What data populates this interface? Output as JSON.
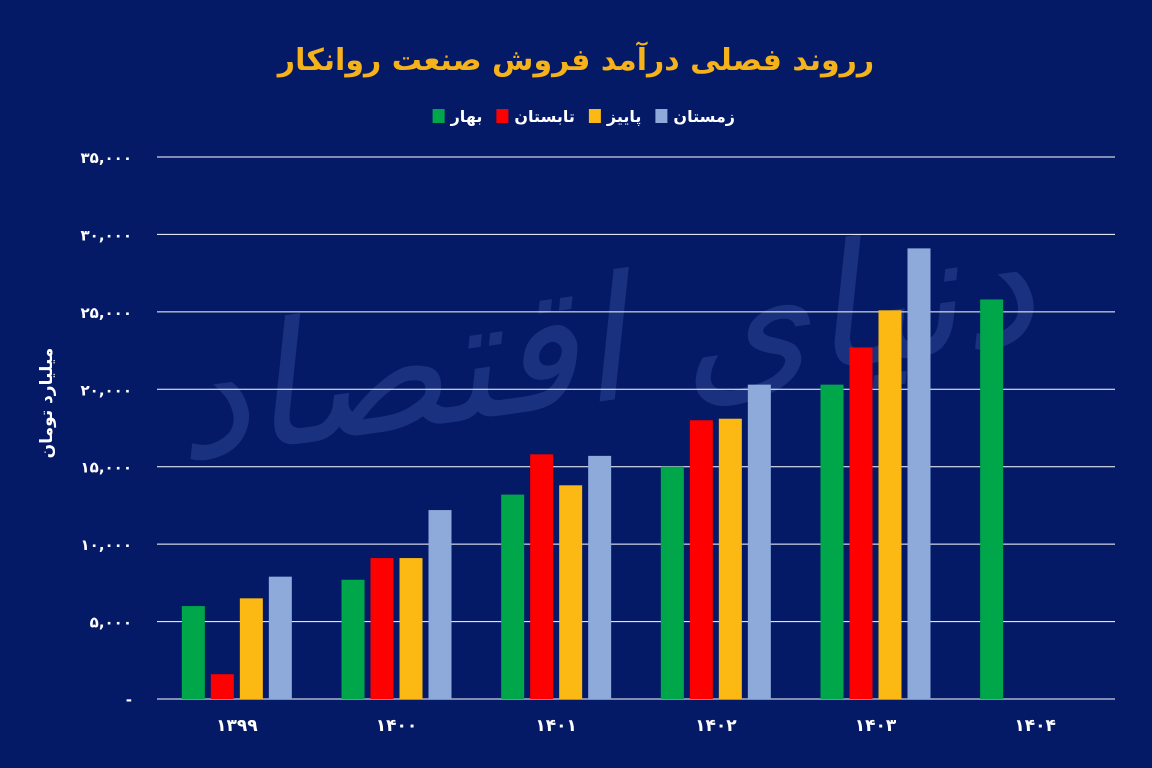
{
  "colors": {
    "background": "#041a66",
    "title": "#f6b21a",
    "text": "#ffffff",
    "grid": "#ffffff",
    "watermark": "#1e3684"
  },
  "watermark_text": "دنیای اقتصاد",
  "chart_data": {
    "type": "bar",
    "title": "رروند فصلی درآمد فروش صنعت روانکار",
    "ylabel": "میلیارد تومان",
    "xlabel": "",
    "legend_position": "top-center",
    "grid": true,
    "ylim": [
      0,
      35000
    ],
    "yticks": [
      {
        "value": 0,
        "label": "-"
      },
      {
        "value": 5000,
        "label": "۵,۰۰۰"
      },
      {
        "value": 10000,
        "label": "۱۰,۰۰۰"
      },
      {
        "value": 15000,
        "label": "۱۵,۰۰۰"
      },
      {
        "value": 20000,
        "label": "۲۰,۰۰۰"
      },
      {
        "value": 25000,
        "label": "۲۵,۰۰۰"
      },
      {
        "value": 30000,
        "label": "۳۰,۰۰۰"
      },
      {
        "value": 35000,
        "label": "۳۵,۰۰۰"
      }
    ],
    "categories": [
      "۱۳۹۹",
      "۱۴۰۰",
      "۱۴۰۱",
      "۱۴۰۲",
      "۱۴۰۳",
      "۱۴۰۴"
    ],
    "series": [
      {
        "name": "بهار",
        "color": "#00a74a",
        "values": [
          6000,
          7700,
          13200,
          15000,
          20300,
          25800
        ]
      },
      {
        "name": "تابستان",
        "color": "#ff0000",
        "values": [
          1600,
          9100,
          15800,
          18000,
          22700,
          null
        ]
      },
      {
        "name": "پاییز",
        "color": "#fdb913",
        "values": [
          6500,
          9100,
          13800,
          18100,
          25100,
          null
        ]
      },
      {
        "name": "زمستان",
        "color": "#8eaadb",
        "values": [
          7900,
          12200,
          15700,
          20300,
          29100,
          null
        ]
      }
    ]
  }
}
